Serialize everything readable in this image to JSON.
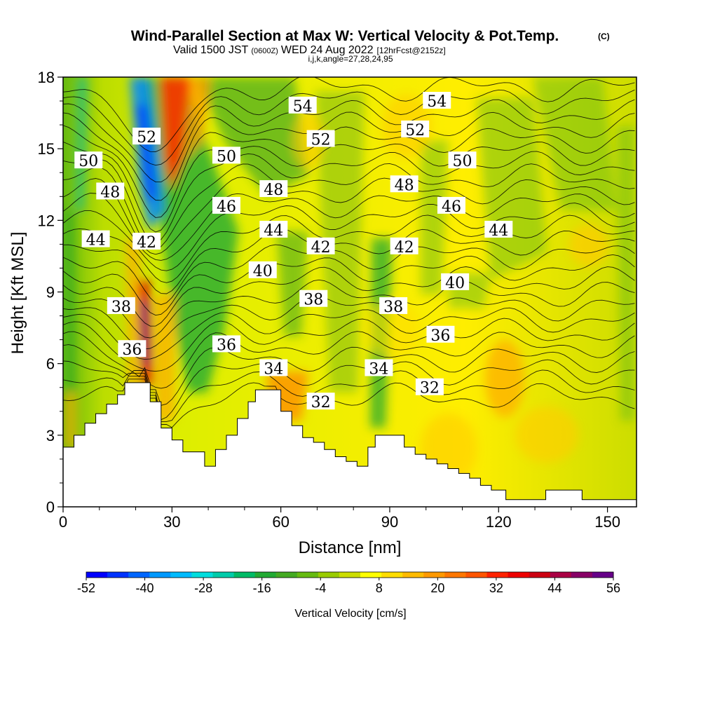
{
  "header": {
    "title": "Wind-Parallel Section at Max W: Vertical Velocity & Pot.Temp.",
    "copyright": "(C)",
    "valid_a": "Valid 1500 JST",
    "valid_utc": "(0600Z)",
    "valid_b": "WED 24 Aug 2022",
    "forecast": "[12hrFcst@2152z]",
    "indices": "i,j,k,angle=27,28,24,95"
  },
  "chart_data": {
    "type": "heatmap",
    "xlabel": "Distance [nm]",
    "ylabel": "Height [Kft MSL]",
    "xlim": [
      0,
      158
    ],
    "ylim": [
      0,
      18
    ],
    "xticks": [
      "0",
      "30",
      "60",
      "90",
      "120",
      "150"
    ],
    "yticks": [
      "0",
      "3",
      "6",
      "9",
      "12",
      "15",
      "18"
    ],
    "colorbar": {
      "title": "Vertical Velocity [cm/s]",
      "labels": [
        "-52",
        "-40",
        "-28",
        "-16",
        "-4",
        "8",
        "20",
        "32",
        "44",
        "56"
      ],
      "colors": [
        "#0000ff",
        "#0033ff",
        "#0066ff",
        "#0099ff",
        "#00bbff",
        "#00dddd",
        "#00ccaa",
        "#00bb66",
        "#22aa33",
        "#44aa22",
        "#66bb11",
        "#99cc00",
        "#ccdd00",
        "#ffff00",
        "#ffdd00",
        "#ffbb00",
        "#ff9900",
        "#ff7700",
        "#ff5500",
        "#ff2200",
        "#ee0000",
        "#cc0011",
        "#aa0044",
        "#880066",
        "#660088"
      ]
    },
    "terrain_kft": [
      [
        0,
        2.5
      ],
      [
        3,
        3
      ],
      [
        6,
        3.5
      ],
      [
        9,
        3.9
      ],
      [
        12,
        4.3
      ],
      [
        15,
        4.7
      ],
      [
        17,
        5.2
      ],
      [
        21,
        5.2
      ],
      [
        24,
        4.4
      ],
      [
        27,
        3.3
      ],
      [
        30,
        2.8
      ],
      [
        33,
        2.3
      ],
      [
        36,
        2.3
      ],
      [
        39,
        1.7
      ],
      [
        42,
        2.4
      ],
      [
        45,
        3.0
      ],
      [
        48,
        3.7
      ],
      [
        51,
        4.4
      ],
      [
        53,
        4.9
      ],
      [
        58,
        4.9
      ],
      [
        60,
        4.0
      ],
      [
        63,
        3.4
      ],
      [
        66,
        2.9
      ],
      [
        69,
        2.7
      ],
      [
        72,
        2.4
      ],
      [
        75,
        2.1
      ],
      [
        78,
        1.9
      ],
      [
        81,
        1.7
      ],
      [
        84,
        2.5
      ],
      [
        86,
        3.0
      ],
      [
        91,
        3.0
      ],
      [
        94,
        2.5
      ],
      [
        97,
        2.2
      ],
      [
        100,
        2.0
      ],
      [
        103,
        1.8
      ],
      [
        106,
        1.6
      ],
      [
        109,
        1.4
      ],
      [
        112,
        1.2
      ],
      [
        115,
        0.9
      ],
      [
        118,
        0.7
      ],
      [
        122,
        0.3
      ],
      [
        130,
        0.3
      ],
      [
        133,
        0.7
      ],
      [
        141,
        0.7
      ],
      [
        143,
        0.3
      ],
      [
        152,
        0.3
      ],
      [
        158,
        0.4
      ]
    ],
    "theta_contours": [
      {
        "label": "32",
        "x": 71,
        "y": 4.4
      },
      {
        "label": "34",
        "x": 58,
        "y": 5.8
      },
      {
        "label": "34",
        "x": 87,
        "y": 5.8
      },
      {
        "label": "32",
        "x": 101,
        "y": 5.0
      },
      {
        "label": "36",
        "x": 19,
        "y": 6.6
      },
      {
        "label": "36",
        "x": 45,
        "y": 6.8
      },
      {
        "label": "36",
        "x": 104,
        "y": 7.2
      },
      {
        "label": "38",
        "x": 16,
        "y": 8.4
      },
      {
        "label": "38",
        "x": 69,
        "y": 8.7
      },
      {
        "label": "38",
        "x": 91,
        "y": 8.4
      },
      {
        "label": "40",
        "x": 55,
        "y": 9.9
      },
      {
        "label": "40",
        "x": 108,
        "y": 9.4
      },
      {
        "label": "42",
        "x": 23,
        "y": 11.1
      },
      {
        "label": "42",
        "x": 71,
        "y": 10.9
      },
      {
        "label": "42",
        "x": 94,
        "y": 10.9
      },
      {
        "label": "44",
        "x": 9,
        "y": 11.2
      },
      {
        "label": "44",
        "x": 58,
        "y": 11.6
      },
      {
        "label": "44",
        "x": 120,
        "y": 11.6
      },
      {
        "label": "46",
        "x": 45,
        "y": 12.6
      },
      {
        "label": "46",
        "x": 107,
        "y": 12.6
      },
      {
        "label": "48",
        "x": 13,
        "y": 13.2
      },
      {
        "label": "48",
        "x": 58,
        "y": 13.3
      },
      {
        "label": "48",
        "x": 94,
        "y": 13.5
      },
      {
        "label": "50",
        "x": 7,
        "y": 14.5
      },
      {
        "label": "50",
        "x": 45,
        "y": 14.7
      },
      {
        "label": "50",
        "x": 110,
        "y": 14.5
      },
      {
        "label": "52",
        "x": 23,
        "y": 15.5
      },
      {
        "label": "52",
        "x": 71,
        "y": 15.4
      },
      {
        "label": "52",
        "x": 97,
        "y": 15.8
      },
      {
        "label": "54",
        "x": 66,
        "y": 16.8
      },
      {
        "label": "54",
        "x": 103,
        "y": 17.0
      }
    ]
  }
}
